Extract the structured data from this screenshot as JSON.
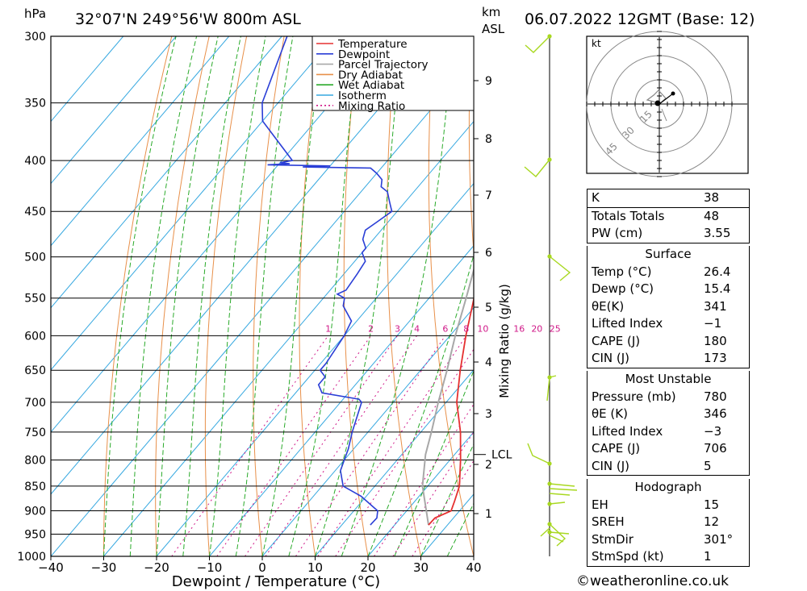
{
  "header": {
    "location": "32°07'N 249°56'W 800m ASL",
    "datetime": "06.07.2022 12GMT (Base: 12)",
    "pressure_unit": "hPa",
    "km_label_1": "km",
    "km_label_2": "ASL"
  },
  "chart_data": {
    "type": "skew-t",
    "xlabel": "Dewpoint / Temperature (°C)",
    "ylabel_right": "Mixing Ratio (g/kg)",
    "x_ticks": [
      -40,
      -30,
      -20,
      -10,
      0,
      10,
      20,
      30,
      40
    ],
    "x_tick_labels": [
      "−40",
      "−30",
      "−20",
      "−10",
      "0",
      "10",
      "20",
      "30",
      "40"
    ],
    "y_ticks": [
      300,
      350,
      400,
      450,
      500,
      550,
      600,
      650,
      700,
      750,
      800,
      850,
      900,
      950,
      1000
    ],
    "ylim": [
      1000,
      300
    ],
    "km_ticks": [
      1,
      2,
      3,
      4,
      5,
      6,
      7,
      8,
      9
    ],
    "mixing_ratio_labels": [
      "1",
      "2",
      "3",
      "4",
      "6",
      "8",
      "10",
      "16",
      "20",
      "25"
    ],
    "mixing_ratio_values": [
      1,
      2,
      3,
      4,
      6,
      8,
      10,
      16,
      20,
      25
    ],
    "lcl_label": "LCL",
    "lcl_pressure": 790,
    "legend": [
      "Temperature",
      "Dewpoint",
      "Parcel Trajectory",
      "Dry Adiabat",
      "Wet Adiabat",
      "Isotherm",
      "Mixing Ratio"
    ],
    "colors": {
      "temperature": "#e53030",
      "dewpoint": "#2a3ed6",
      "parcel": "#a8a8a8",
      "dry_adiabat": "#e8904a",
      "wet_adiabat": "#2aaa2a",
      "isotherm": "#36a8e0",
      "mixing_ratio": "#d01888",
      "wind": "#a8d820"
    },
    "series": [
      {
        "name": "Temperature",
        "points": [
          [
            930,
            26.4
          ],
          [
            915,
            26.5
          ],
          [
            900,
            28.4
          ],
          [
            880,
            27.5
          ],
          [
            850,
            26
          ],
          [
            800,
            22
          ],
          [
            750,
            17.5
          ],
          [
            700,
            12
          ],
          [
            650,
            7.5
          ],
          [
            600,
            3
          ],
          [
            550,
            -1.5
          ],
          [
            530,
            -3
          ],
          [
            500,
            -6
          ],
          [
            470,
            -9.5
          ],
          [
            450,
            -12
          ],
          [
            430,
            -14.5
          ],
          [
            410,
            -17.5
          ],
          [
            400,
            -19
          ],
          [
            380,
            -21
          ],
          [
            360,
            -24
          ]
        ]
      },
      {
        "name": "Dewpoint",
        "points": [
          [
            930,
            15.4
          ],
          [
            915,
            15.5
          ],
          [
            900,
            14.5
          ],
          [
            870,
            9
          ],
          [
            850,
            4
          ],
          [
            820,
            1
          ],
          [
            800,
            0
          ],
          [
            780,
            -1
          ],
          [
            750,
            -3
          ],
          [
            700,
            -6
          ],
          [
            695,
            -7
          ],
          [
            685,
            -15
          ],
          [
            672,
            -17
          ],
          [
            660,
            -17
          ],
          [
            650,
            -19
          ],
          [
            640,
            -19
          ],
          [
            600,
            -20
          ],
          [
            580,
            -21
          ],
          [
            560,
            -25
          ],
          [
            550,
            -26
          ],
          [
            545,
            -28
          ],
          [
            540,
            -27
          ],
          [
            520,
            -27.5
          ],
          [
            505,
            -28
          ],
          [
            495,
            -30
          ],
          [
            490,
            -30
          ],
          [
            480,
            -32
          ],
          [
            470,
            -33
          ],
          [
            460,
            -32
          ],
          [
            450,
            -31
          ],
          [
            445,
            -32
          ],
          [
            440,
            -33
          ],
          [
            430,
            -35
          ],
          [
            425,
            -37
          ],
          [
            418,
            -38
          ],
          [
            412,
            -40
          ],
          [
            407,
            -42
          ],
          [
            406,
            -55
          ],
          [
            405,
            -50
          ],
          [
            404,
            -62
          ],
          [
            403,
            -58
          ],
          [
            402,
            -60
          ],
          [
            400,
            -58
          ],
          [
            365,
            -70
          ],
          [
            350,
            -73
          ],
          [
            300,
            -79
          ]
        ]
      },
      {
        "name": "Parcel Trajectory",
        "points": [
          [
            930,
            26.4
          ],
          [
            850,
            19
          ],
          [
            790,
            14.5
          ],
          [
            750,
            12
          ],
          [
            700,
            8.5
          ],
          [
            650,
            5
          ],
          [
            600,
            1
          ],
          [
            550,
            -3
          ],
          [
            500,
            -7.5
          ],
          [
            450,
            -13
          ],
          [
            400,
            -20
          ],
          [
            370,
            -24.5
          ],
          [
            350,
            -28
          ],
          [
            300,
            -34
          ]
        ]
      }
    ]
  },
  "hodograph": {
    "unit_label": "kt",
    "rings": [
      15,
      30,
      45
    ],
    "ring_labels": [
      "15",
      "30",
      "45"
    ]
  },
  "tables": {
    "indices": [
      {
        "label": "K",
        "value": "38"
      },
      {
        "label": "Totals Totals",
        "value": "48"
      },
      {
        "label": "PW (cm)",
        "value": "3.55"
      }
    ],
    "surface": {
      "title": "Surface",
      "rows": [
        {
          "label": "Temp (°C)",
          "value": "26.4"
        },
        {
          "label": "Dewp (°C)",
          "value": "15.4"
        },
        {
          "label": "θE(K)",
          "value": "341"
        },
        {
          "label": "Lifted Index",
          "value": "−1"
        },
        {
          "label": "CAPE (J)",
          "value": "180"
        },
        {
          "label": "CIN (J)",
          "value": "173"
        }
      ]
    },
    "most_unstable": {
      "title": "Most Unstable",
      "rows": [
        {
          "label": "Pressure (mb)",
          "value": "780"
        },
        {
          "label": "θE (K)",
          "value": "346"
        },
        {
          "label": "Lifted Index",
          "value": "−3"
        },
        {
          "label": "CAPE (J)",
          "value": "706"
        },
        {
          "label": "CIN (J)",
          "value": "5"
        }
      ]
    },
    "hodograph": {
      "title": "Hodograph",
      "rows": [
        {
          "label": "EH",
          "value": "15"
        },
        {
          "label": "SREH",
          "value": "12"
        },
        {
          "label": "StmDir",
          "value": "301°"
        },
        {
          "label": "StmSpd (kt)",
          "value": "1"
        }
      ]
    }
  },
  "credit": "©weatheronline.co.uk"
}
